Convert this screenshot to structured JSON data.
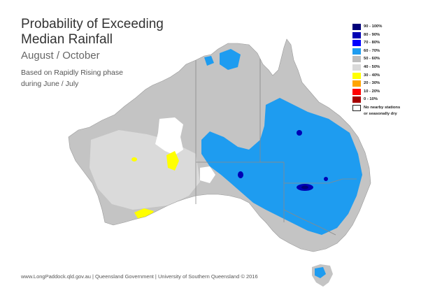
{
  "title_line1": "Probability of Exceeding",
  "title_line2": "Median Rainfall",
  "period": "August / October",
  "basis_line1": "Based on Rapidly Rising phase",
  "basis_line2": "during June / July",
  "footer": "www.LongPaddock.qld.gov.au | Queensland Government | University of Southern Queensland © 2016",
  "legend": [
    {
      "label": "90 - 100%",
      "color": "#00007a"
    },
    {
      "label": "80 - 90%",
      "color": "#0000b4"
    },
    {
      "label": "70 - 80%",
      "color": "#0000ff"
    },
    {
      "label": "60 - 70%",
      "color": "#1e9cf0"
    },
    {
      "label": "50 - 60%",
      "color": "#bdbdbd"
    },
    {
      "label": "40 - 50%",
      "color": "#d9d9d9"
    },
    {
      "label": "30 - 40%",
      "color": "#ffff00"
    },
    {
      "label": "20 - 30%",
      "color": "#ffa500"
    },
    {
      "label": "10 - 20%",
      "color": "#ff0000"
    },
    {
      "label": "0 - 10%",
      "color": "#a50000"
    }
  ],
  "legend_nodata_line1": "No nearby stations",
  "legend_nodata_line2": "or seasonally dry",
  "colors": {
    "land_grey": "#c4c4c4",
    "land_light": "#dadada",
    "blue": "#1e9cf0",
    "dark_blue": "#0000b4",
    "navy": "#00007a",
    "yellow": "#ffff00",
    "no_data": "#ffffff",
    "border": "#8a8a8a"
  }
}
